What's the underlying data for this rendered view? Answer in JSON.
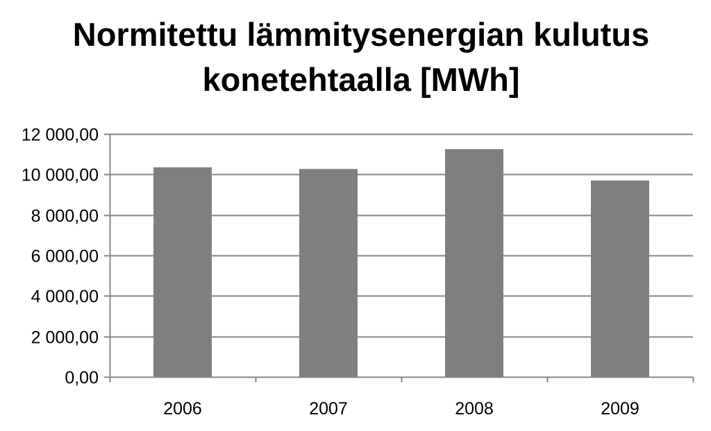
{
  "chart_data": {
    "type": "bar",
    "title": "Normitettu lämmitysenergian kulutus konetehtaalla [MWh]",
    "title_lines": [
      "Normitettu lämmitysenergian kulutus",
      "konetehtaalla [MWh]"
    ],
    "categories": [
      "2006",
      "2007",
      "2008",
      "2009"
    ],
    "values": [
      10350,
      10270,
      11250,
      9700
    ],
    "ylim": [
      0,
      12000
    ],
    "yticks": [
      0,
      2000,
      4000,
      6000,
      8000,
      10000,
      12000
    ],
    "ytick_labels": [
      "0,00",
      "2 000,00",
      "4 000,00",
      "6 000,00",
      "8 000,00",
      "10 000,00",
      "12 000,00"
    ],
    "xlabel": "",
    "ylabel": "",
    "grid": true,
    "legend": "none",
    "bar_color": "#7f7f7f",
    "grid_color": "#868686"
  }
}
